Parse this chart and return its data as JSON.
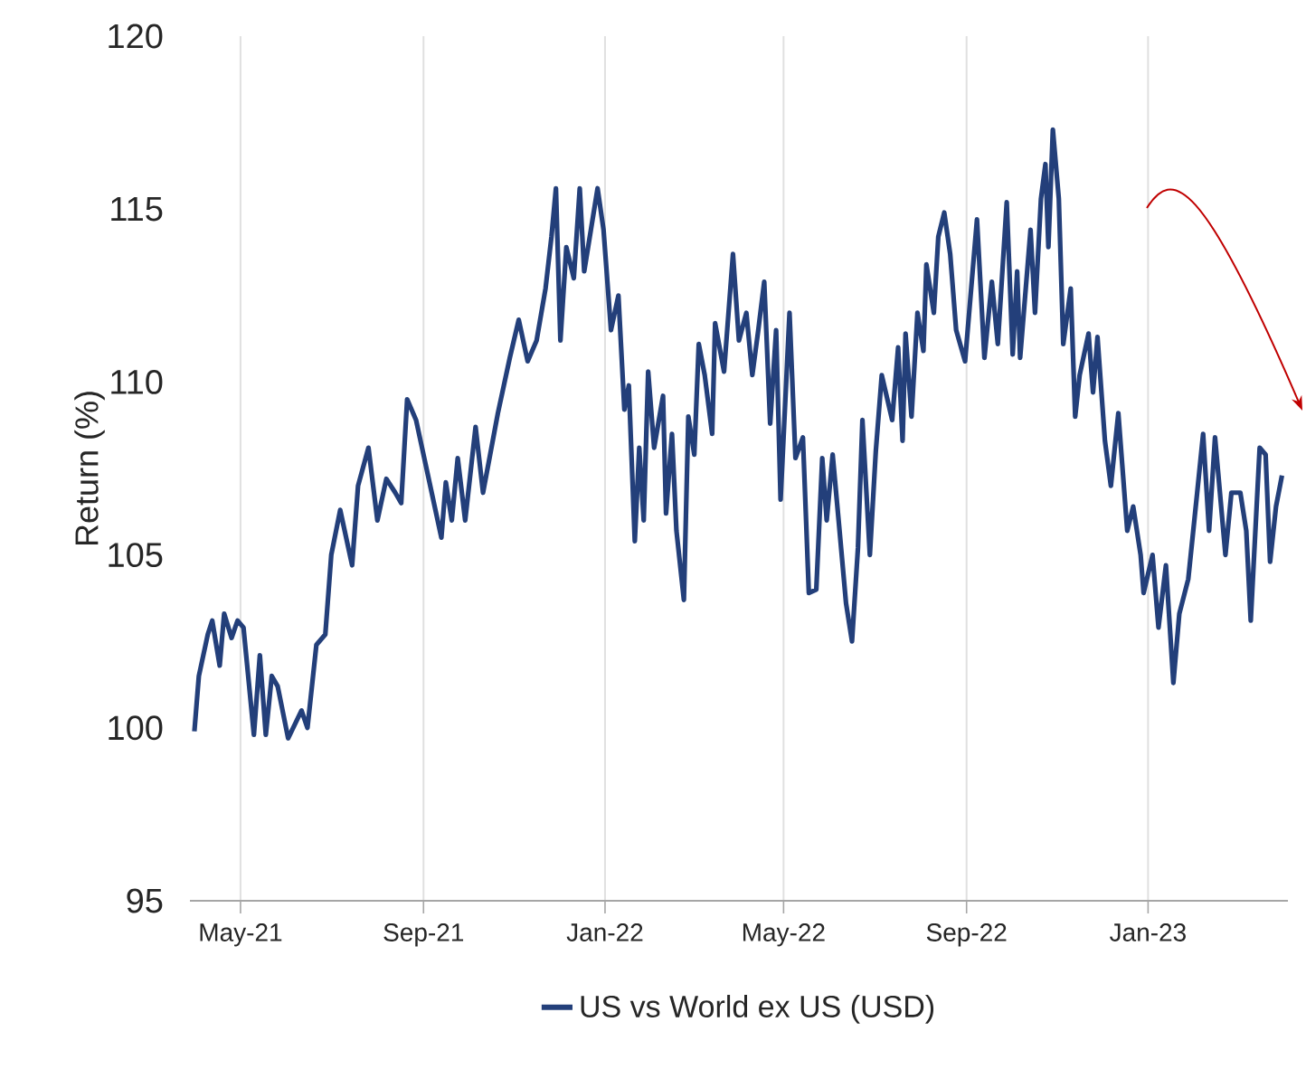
{
  "chart_data": {
    "type": "line",
    "ylabel": "Return (%)",
    "xlim": [
      "2021-03-28",
      "2023-04-05"
    ],
    "xticks": [
      {
        "value": "2021-05-01",
        "label": "May-21"
      },
      {
        "value": "2021-09-01",
        "label": "Sep-21"
      },
      {
        "value": "2022-01-01",
        "label": "Jan-22"
      },
      {
        "value": "2022-05-01",
        "label": "May-22"
      },
      {
        "value": "2022-09-01",
        "label": "Sep-22"
      },
      {
        "value": "2023-01-01",
        "label": "Jan-23"
      }
    ],
    "ylim": [
      95,
      120
    ],
    "yticks": [
      95,
      100,
      105,
      110,
      115,
      120
    ],
    "grid": "x",
    "legend": "bottom",
    "line_style": "solid",
    "x": [
      "2021-03-31",
      "2021-04-03",
      "2021-04-09",
      "2021-04-12",
      "2021-04-17",
      "2021-04-20",
      "2021-04-25",
      "2021-04-29",
      "2021-05-03",
      "2021-05-10",
      "2021-05-14",
      "2021-05-18",
      "2021-05-22",
      "2021-05-26",
      "2021-06-02",
      "2021-06-11",
      "2021-06-15",
      "2021-06-21",
      "2021-06-27",
      "2021-07-01",
      "2021-07-07",
      "2021-07-15",
      "2021-07-19",
      "2021-07-26",
      "2021-08-01",
      "2021-08-07",
      "2021-08-13",
      "2021-08-17",
      "2021-08-21",
      "2021-08-27",
      "2021-09-04",
      "2021-09-13",
      "2021-09-16",
      "2021-09-20",
      "2021-09-24",
      "2021-09-29",
      "2021-10-06",
      "2021-10-11",
      "2021-10-21",
      "2021-10-29",
      "2021-11-04",
      "2021-11-10",
      "2021-11-16",
      "2021-11-22",
      "2021-11-26",
      "2021-11-29",
      "2021-12-02",
      "2021-12-06",
      "2021-12-11",
      "2021-12-15",
      "2021-12-18",
      "2021-12-27",
      "2021-12-31",
      "2022-01-05",
      "2022-01-10",
      "2022-01-14",
      "2022-01-17",
      "2022-01-21",
      "2022-01-24",
      "2022-01-27",
      "2022-01-30",
      "2022-02-03",
      "2022-02-09",
      "2022-02-11",
      "2022-02-15",
      "2022-02-18",
      "2022-02-23",
      "2022-02-26",
      "2022-03-02",
      "2022-03-05",
      "2022-03-09",
      "2022-03-14",
      "2022-03-16",
      "2022-03-22",
      "2022-03-28",
      "2022-04-01",
      "2022-04-06",
      "2022-04-10",
      "2022-04-14",
      "2022-04-18",
      "2022-04-22",
      "2022-04-26",
      "2022-04-29",
      "2022-05-05",
      "2022-05-09",
      "2022-05-14",
      "2022-05-18",
      "2022-05-23",
      "2022-05-27",
      "2022-05-30",
      "2022-06-03",
      "2022-06-07",
      "2022-06-12",
      "2022-06-16",
      "2022-06-20",
      "2022-06-23",
      "2022-06-28",
      "2022-07-02",
      "2022-07-06",
      "2022-07-13",
      "2022-07-17",
      "2022-07-20",
      "2022-07-22",
      "2022-07-26",
      "2022-07-30",
      "2022-08-03",
      "2022-08-05",
      "2022-08-10",
      "2022-08-13",
      "2022-08-17",
      "2022-08-21",
      "2022-08-25",
      "2022-08-31",
      "2022-09-08",
      "2022-09-13",
      "2022-09-18",
      "2022-09-22",
      "2022-09-28",
      "2022-10-02",
      "2022-10-05",
      "2022-10-07",
      "2022-10-14",
      "2022-10-17",
      "2022-10-21",
      "2022-10-24",
      "2022-10-26",
      "2022-10-29",
      "2022-11-02",
      "2022-11-05",
      "2022-11-10",
      "2022-11-13",
      "2022-11-16",
      "2022-11-22",
      "2022-11-25",
      "2022-11-28",
      "2022-12-03",
      "2022-12-07",
      "2022-12-12",
      "2022-12-18",
      "2022-12-22",
      "2022-12-27",
      "2022-12-29",
      "2023-01-04",
      "2023-01-08",
      "2023-01-13",
      "2023-01-18",
      "2023-01-22",
      "2023-01-28",
      "2023-02-03",
      "2023-02-07",
      "2023-02-11",
      "2023-02-15",
      "2023-02-22",
      "2023-02-26",
      "2023-03-04",
      "2023-03-08",
      "2023-03-11",
      "2023-03-17",
      "2023-03-21",
      "2023-03-24",
      "2023-03-28",
      "2023-04-01"
    ],
    "series": [
      {
        "name": "US vs World ex US (USD)",
        "color": "#233f7a",
        "values": [
          99.9,
          101.5,
          102.7,
          103.1,
          101.8,
          103.3,
          102.6,
          103.1,
          102.9,
          99.8,
          102.1,
          99.8,
          101.5,
          101.2,
          99.7,
          100.5,
          100.0,
          102.4,
          102.7,
          105.0,
          106.3,
          104.7,
          107.0,
          108.1,
          106.0,
          107.2,
          106.8,
          106.5,
          109.5,
          108.9,
          107.3,
          105.5,
          107.1,
          106.0,
          107.8,
          106.0,
          108.7,
          106.8,
          109.1,
          110.7,
          111.8,
          110.6,
          111.2,
          112.7,
          114.2,
          115.6,
          111.2,
          113.9,
          113.0,
          115.6,
          113.2,
          115.6,
          114.4,
          111.5,
          112.5,
          109.2,
          109.9,
          105.4,
          108.1,
          106.0,
          110.3,
          108.1,
          109.6,
          106.2,
          108.5,
          105.7,
          103.7,
          109.0,
          107.9,
          111.1,
          110.2,
          108.5,
          111.7,
          110.3,
          113.7,
          111.2,
          112.0,
          110.2,
          111.5,
          112.9,
          108.8,
          111.5,
          106.6,
          112.0,
          107.8,
          108.4,
          103.9,
          104.0,
          107.8,
          106.0,
          107.9,
          106.0,
          103.6,
          102.5,
          105.2,
          108.9,
          105.0,
          108.0,
          110.2,
          108.9,
          111.0,
          108.3,
          111.4,
          109.0,
          112.0,
          110.9,
          113.4,
          112.0,
          114.2,
          114.9,
          113.7,
          111.5,
          110.6,
          114.7,
          110.7,
          112.9,
          111.1,
          115.2,
          110.8,
          113.2,
          110.7,
          114.4,
          112.0,
          115.3,
          116.3,
          113.9,
          117.3,
          115.3,
          111.1,
          112.7,
          109.0,
          110.2,
          111.4,
          109.7,
          111.3,
          108.3,
          107.0,
          109.1,
          105.7,
          106.4,
          105.0,
          103.9,
          105.0,
          102.9,
          104.7,
          101.3,
          103.3,
          104.3,
          106.8,
          108.5,
          105.7,
          108.4,
          105.0,
          106.8,
          106.8,
          105.7,
          103.1,
          108.1,
          107.9,
          104.8,
          106.4,
          107.3
        ]
      }
    ]
  }
}
